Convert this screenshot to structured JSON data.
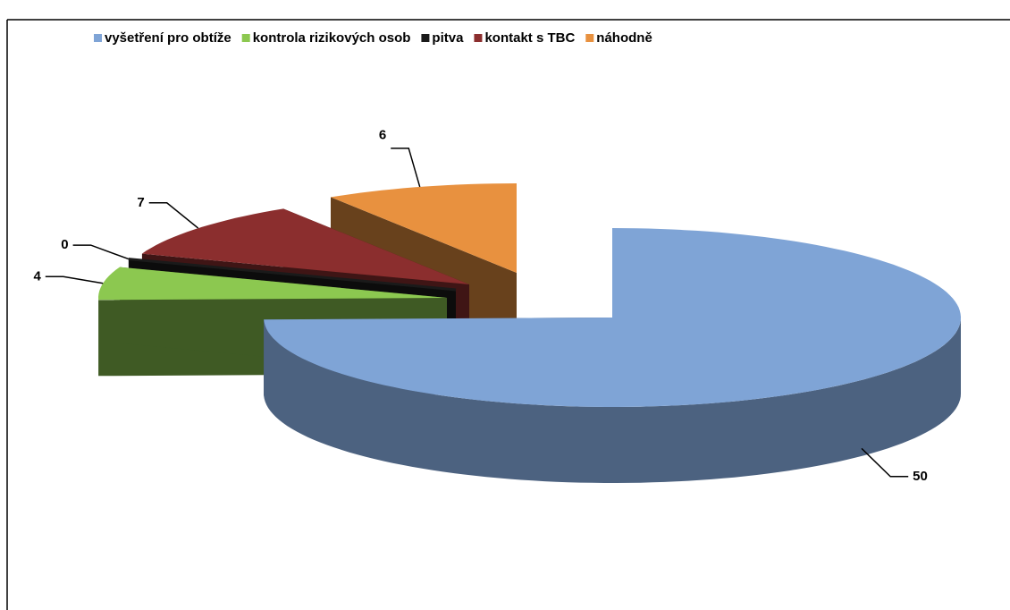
{
  "chart_data": {
    "type": "pie3d",
    "categories": [
      "vyšetření pro obtíže",
      "kontrola rizikových osob",
      "pitva",
      "kontakt s TBC",
      "náhodně"
    ],
    "values": [
      50,
      4,
      0,
      7,
      6
    ],
    "colors": [
      "#7fa4d6",
      "#8cc850",
      "#1a1a1a",
      "#8b2e2e",
      "#e8913f"
    ],
    "legend": "top"
  }
}
